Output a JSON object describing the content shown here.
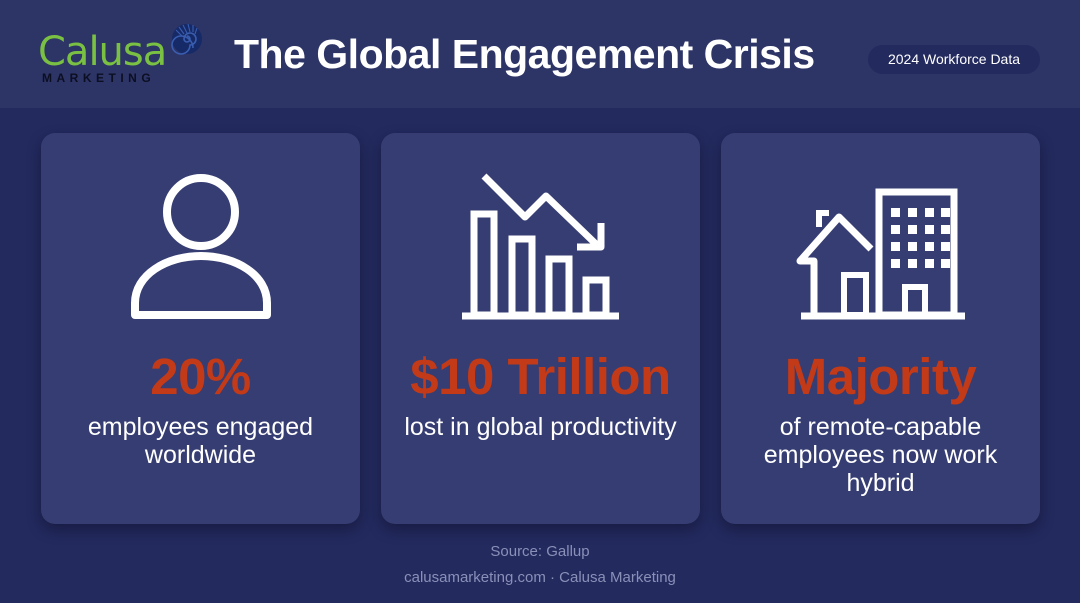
{
  "header": {
    "logo": {
      "word": "Calusa",
      "sub": "MARKETING"
    },
    "title": "The Global Engagement Crisis",
    "badge": "2024 Workforce Data"
  },
  "cards": [
    {
      "icon": "person-icon",
      "value": "20%",
      "description": "employees engaged worldwide"
    },
    {
      "icon": "declining-bar-chart-icon",
      "value": "$10 Trillion",
      "description": "lost in global productivity"
    },
    {
      "icon": "house-and-office-building-icon",
      "value": "Majority",
      "description": "of remote-capable employees now work hybrid"
    }
  ],
  "footer": {
    "source": "Source: Gallup",
    "credit": "calusamarketing.com · Calusa Marketing"
  },
  "colors": {
    "background": "#232a5e",
    "header": "#2d3466",
    "card": "#353d72",
    "accent": "#c23a17",
    "logo_green": "#7ac143"
  }
}
